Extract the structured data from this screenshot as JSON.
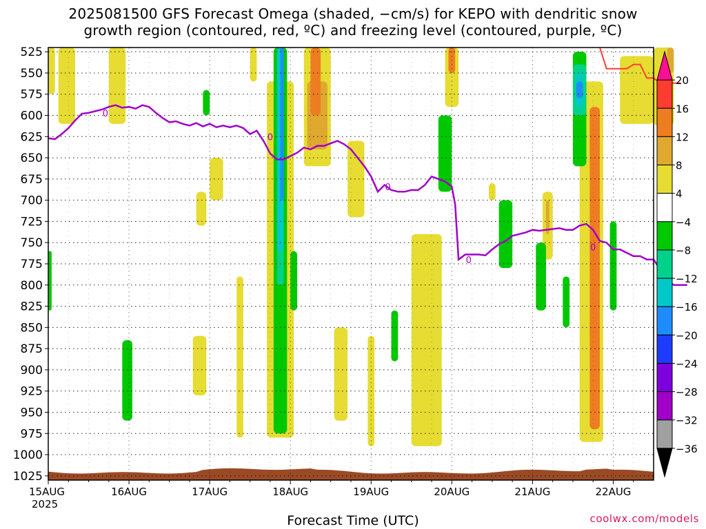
{
  "chart_data": {
    "type": "heatmap",
    "title": "2025081500 GFS Forecast Omega (shaded, −cm/s) for KEPO with dendritic snow",
    "subtitle": "growth region (contoured, red, ºC) and freezing level (contoured, purple, ºC)",
    "xlabel": "Forecast Time (UTC)",
    "x_ticks": [
      "15AUG",
      "16AUG",
      "17AUG",
      "18AUG",
      "19AUG",
      "20AUG",
      "21AUG",
      "22AUG"
    ],
    "x_tick_year": "2025",
    "xlim_hours": [
      0,
      180
    ],
    "y_ticks": [
      525,
      550,
      575,
      600,
      625,
      650,
      675,
      700,
      725,
      750,
      775,
      800,
      825,
      850,
      875,
      900,
      925,
      950,
      975,
      1000,
      1025
    ],
    "ylim": [
      1030,
      520
    ],
    "grid": true,
    "colorbar": {
      "tick_labels": [
        "20",
        "16",
        "12",
        "8",
        "4",
        "−4",
        "−8",
        "−12",
        "−16",
        "−20",
        "−24",
        "−28",
        "−32",
        "−36"
      ],
      "bins": [
        {
          "color": "#ff0f96"
        },
        {
          "color": "#ff3c32"
        },
        {
          "color": "#ee7d21"
        },
        {
          "color": "#dfa82f"
        },
        {
          "color": "#e6dc32"
        },
        {
          "color": "#ffffff"
        },
        {
          "color": "#00c800"
        },
        {
          "color": "#00d28c"
        },
        {
          "color": "#00c8c8"
        },
        {
          "color": "#1e8cff"
        },
        {
          "color": "#1e3cff"
        },
        {
          "color": "#7d00dc"
        },
        {
          "color": "#a000c8"
        },
        {
          "color": "#a0a0a0"
        },
        {
          "color": "#000000"
        }
      ]
    },
    "freezing_level": {
      "label": "0",
      "color": "#a000c8",
      "points": [
        [
          0,
          627
        ],
        [
          2,
          628
        ],
        [
          4,
          622
        ],
        [
          6,
          615
        ],
        [
          8,
          606
        ],
        [
          10,
          598
        ],
        [
          12,
          597
        ],
        [
          14,
          595
        ],
        [
          16,
          593
        ],
        [
          18,
          590
        ],
        [
          20,
          588
        ],
        [
          22,
          591
        ],
        [
          24,
          590
        ],
        [
          26,
          592
        ],
        [
          28,
          588
        ],
        [
          30,
          590
        ],
        [
          32,
          597
        ],
        [
          34,
          603
        ],
        [
          36,
          608
        ],
        [
          38,
          607
        ],
        [
          40,
          610
        ],
        [
          42,
          612
        ],
        [
          44,
          609
        ],
        [
          46,
          613
        ],
        [
          48,
          610
        ],
        [
          50,
          614
        ],
        [
          52,
          612
        ],
        [
          54,
          614
        ],
        [
          56,
          612
        ],
        [
          58,
          615
        ],
        [
          60,
          622
        ],
        [
          62,
          618
        ],
        [
          64,
          630
        ],
        [
          66,
          645
        ],
        [
          68,
          652
        ],
        [
          70,
          652
        ],
        [
          72,
          648
        ],
        [
          74,
          644
        ],
        [
          76,
          638
        ],
        [
          78,
          640
        ],
        [
          80,
          636
        ],
        [
          82,
          636
        ],
        [
          84,
          633
        ],
        [
          86,
          630
        ],
        [
          88,
          634
        ],
        [
          90,
          640
        ],
        [
          92,
          650
        ],
        [
          94,
          660
        ],
        [
          96,
          672
        ],
        [
          98,
          690
        ],
        [
          100,
          682
        ],
        [
          102,
          688
        ],
        [
          104,
          690
        ],
        [
          106,
          690
        ],
        [
          108,
          688
        ],
        [
          110,
          688
        ],
        [
          112,
          682
        ],
        [
          114,
          672
        ],
        [
          116,
          675
        ],
        [
          118,
          678
        ],
        [
          120,
          684
        ],
        [
          121,
          705
        ],
        [
          122,
          770
        ],
        [
          124,
          764
        ],
        [
          126,
          764
        ],
        [
          128,
          764
        ],
        [
          130,
          765
        ],
        [
          132,
          758
        ],
        [
          134,
          752
        ],
        [
          136,
          748
        ],
        [
          138,
          742
        ],
        [
          140,
          740
        ],
        [
          142,
          738
        ],
        [
          144,
          735
        ],
        [
          146,
          736
        ],
        [
          148,
          735
        ],
        [
          150,
          734
        ],
        [
          152,
          733
        ],
        [
          154,
          735
        ],
        [
          156,
          735
        ],
        [
          158,
          730
        ],
        [
          160,
          728
        ],
        [
          162,
          735
        ],
        [
          164,
          748
        ],
        [
          166,
          750
        ],
        [
          168,
          758
        ],
        [
          170,
          758
        ],
        [
          172,
          762
        ],
        [
          174,
          766
        ],
        [
          176,
          766
        ],
        [
          178,
          770
        ],
        [
          180,
          770
        ],
        [
          182,
          782
        ],
        [
          184,
          795
        ],
        [
          186,
          800
        ],
        [
          188,
          800
        ],
        [
          190,
          800
        ]
      ]
    },
    "dendritic_growth_region": {
      "color": "#ff3c32",
      "points": [
        [
          164,
          520
        ],
        [
          166,
          545
        ],
        [
          170,
          545
        ],
        [
          172,
          545
        ],
        [
          174,
          540
        ],
        [
          176,
          540
        ],
        [
          178,
          556
        ],
        [
          180,
          556
        ],
        [
          182,
          562
        ],
        [
          186,
          562
        ],
        [
          188,
          562
        ]
      ]
    },
    "ground_pressure": 1020,
    "shading_regions": [
      {
        "bin": "4",
        "x": [
          0,
          2
        ],
        "p": [
          520,
          575
        ]
      },
      {
        "bin": "4",
        "x": [
          3,
          8
        ],
        "p": [
          520,
          610
        ]
      },
      {
        "bin": "4",
        "x": [
          18,
          23
        ],
        "p": [
          520,
          610
        ]
      },
      {
        "bin": "4",
        "x": [
          60,
          62
        ],
        "p": [
          520,
          560
        ]
      },
      {
        "bin": "4",
        "x": [
          76,
          84
        ],
        "p": [
          520,
          660
        ]
      },
      {
        "bin": "12",
        "x": [
          78,
          81
        ],
        "p": [
          520,
          600
        ]
      },
      {
        "bin": "8",
        "x": [
          77,
          83
        ],
        "p": [
          560,
          640
        ]
      },
      {
        "bin": "4",
        "x": [
          118,
          122
        ],
        "p": [
          520,
          590
        ]
      },
      {
        "bin": "12",
        "x": [
          119,
          121
        ],
        "p": [
          520,
          550
        ]
      },
      {
        "bin": "4",
        "x": [
          170,
          180
        ],
        "p": [
          530,
          610
        ]
      },
      {
        "bin": "4",
        "x": [
          180,
          186
        ],
        "p": [
          520,
          612
        ]
      },
      {
        "bin": "8",
        "x": [
          184,
          186
        ],
        "p": [
          520,
          550
        ]
      },
      {
        "bin": "4",
        "x": [
          48,
          52
        ],
        "p": [
          650,
          700
        ]
      },
      {
        "bin": "4",
        "x": [
          44,
          47
        ],
        "p": [
          690,
          730
        ]
      },
      {
        "bin": "4",
        "x": [
          89,
          94
        ],
        "p": [
          630,
          720
        ]
      },
      {
        "bin": "4",
        "x": [
          108,
          117
        ],
        "p": [
          740,
          990
        ]
      },
      {
        "bin": "4",
        "x": [
          85,
          89
        ],
        "p": [
          850,
          960
        ]
      },
      {
        "bin": "4",
        "x": [
          95,
          97
        ],
        "p": [
          860,
          990
        ]
      },
      {
        "bin": "4",
        "x": [
          43,
          47
        ],
        "p": [
          860,
          930
        ]
      },
      {
        "bin": "4",
        "x": [
          56,
          58
        ],
        "p": [
          790,
          980
        ]
      },
      {
        "bin": "4",
        "x": [
          131,
          133
        ],
        "p": [
          680,
          700
        ]
      },
      {
        "bin": "4",
        "x": [
          147,
          150
        ],
        "p": [
          690,
          770
        ]
      },
      {
        "bin": "8",
        "x": [
          148,
          149
        ],
        "p": [
          700,
          740
        ]
      },
      {
        "bin": "4",
        "x": [
          158,
          165
        ],
        "p": [
          560,
          985
        ]
      },
      {
        "bin": "12",
        "x": [
          161,
          164
        ],
        "p": [
          590,
          970
        ]
      },
      {
        "bin": "-8",
        "x": [
          116,
          120
        ],
        "p": [
          600,
          690
        ]
      },
      {
        "bin": "-8",
        "x": [
          134,
          138
        ],
        "p": [
          700,
          780
        ]
      },
      {
        "bin": "-8",
        "x": [
          145,
          148
        ],
        "p": [
          750,
          830
        ]
      },
      {
        "bin": "-8",
        "x": [
          153,
          155
        ],
        "p": [
          790,
          850
        ]
      },
      {
        "bin": "-8",
        "x": [
          167,
          169
        ],
        "p": [
          725,
          830
        ]
      },
      {
        "bin": "-8",
        "x": [
          22,
          25
        ],
        "p": [
          865,
          960
        ]
      },
      {
        "bin": "-8",
        "x": [
          46,
          48
        ],
        "p": [
          570,
          600
        ]
      },
      {
        "bin": "-8",
        "x": [
          72,
          74
        ],
        "p": [
          760,
          830
        ]
      },
      {
        "bin": "-8",
        "x": [
          102,
          104
        ],
        "p": [
          830,
          890
        ]
      },
      {
        "bin": "-8",
        "x": [
          0,
          1
        ],
        "p": [
          760,
          830
        ]
      },
      {
        "bin": "-8",
        "x": [
          156,
          160
        ],
        "p": [
          525,
          660
        ]
      },
      {
        "bin": "-12",
        "x": [
          156,
          160
        ],
        "p": [
          540,
          600
        ]
      },
      {
        "bin": "-16",
        "x": [
          157,
          159
        ],
        "p": [
          550,
          590
        ]
      },
      {
        "bin": "-20",
        "x": [
          157,
          159
        ],
        "p": [
          560,
          580
        ]
      },
      {
        "bin": "-8",
        "x": [
          67,
          71
        ],
        "p": [
          520,
          975
        ]
      },
      {
        "bin": "-12",
        "x": [
          68,
          70
        ],
        "p": [
          600,
          800
        ]
      },
      {
        "bin": "-16",
        "x": [
          68,
          70
        ],
        "p": [
          520,
          760
        ]
      },
      {
        "bin": "-20",
        "x": [
          69,
          70
        ],
        "p": [
          520,
          700
        ]
      },
      {
        "bin": "4",
        "x": [
          65,
          73
        ],
        "p": [
          560,
          980
        ]
      }
    ]
  }
}
